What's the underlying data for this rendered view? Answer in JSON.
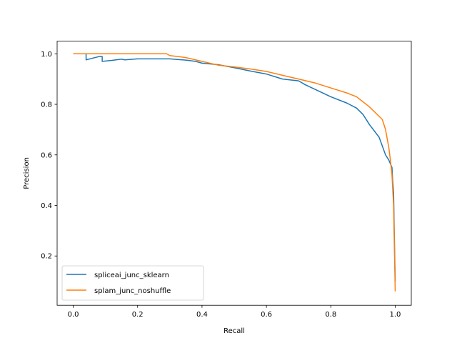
{
  "chart_data": {
    "type": "line",
    "title": "",
    "xlabel": "Recall",
    "ylabel": "Precision",
    "xlim": [
      -0.05,
      1.05
    ],
    "ylim": [
      0.005,
      1.05
    ],
    "xticks": [
      0.0,
      0.2,
      0.4,
      0.6,
      0.8,
      1.0
    ],
    "xtick_labels": [
      "0.0",
      "0.2",
      "0.4",
      "0.6",
      "0.8",
      "1.0"
    ],
    "yticks": [
      0.2,
      0.4,
      0.6,
      0.8,
      1.0
    ],
    "ytick_labels": [
      "0.2",
      "0.4",
      "0.6",
      "0.8",
      "1.0"
    ],
    "grid": false,
    "legend_position": "lower-left",
    "series": [
      {
        "name": "spliceai_junc_sklearn",
        "color": "#1f77b4",
        "x": [
          0.0,
          0.04,
          0.04,
          0.08,
          0.09,
          0.09,
          0.12,
          0.15,
          0.16,
          0.2,
          0.25,
          0.3,
          0.35,
          0.38,
          0.4,
          0.45,
          0.5,
          0.55,
          0.6,
          0.65,
          0.7,
          0.72,
          0.75,
          0.8,
          0.85,
          0.88,
          0.9,
          0.92,
          0.95,
          0.97,
          0.98,
          0.99,
          0.992,
          0.995,
          0.997,
          1.0
        ],
        "y": [
          1.0,
          1.0,
          0.976,
          0.989,
          0.989,
          0.97,
          0.974,
          0.979,
          0.976,
          0.98,
          0.98,
          0.98,
          0.975,
          0.97,
          0.963,
          0.957,
          0.945,
          0.932,
          0.92,
          0.9,
          0.893,
          0.878,
          0.86,
          0.83,
          0.805,
          0.785,
          0.76,
          0.72,
          0.67,
          0.6,
          0.58,
          0.55,
          0.5,
          0.45,
          0.3,
          0.1
        ]
      },
      {
        "name": "splam_junc_noshuffle",
        "color": "#ff7f0e",
        "x": [
          0.0,
          0.1,
          0.2,
          0.29,
          0.3,
          0.35,
          0.4,
          0.45,
          0.5,
          0.55,
          0.6,
          0.65,
          0.7,
          0.75,
          0.8,
          0.85,
          0.88,
          0.9,
          0.92,
          0.94,
          0.96,
          0.97,
          0.98,
          0.985,
          0.99,
          0.995,
          0.998,
          1.0
        ],
        "y": [
          1.0,
          1.0,
          1.0,
          1.0,
          0.993,
          0.985,
          0.97,
          0.955,
          0.948,
          0.94,
          0.93,
          0.915,
          0.9,
          0.885,
          0.865,
          0.845,
          0.83,
          0.81,
          0.79,
          0.765,
          0.74,
          0.7,
          0.63,
          0.58,
          0.52,
          0.4,
          0.2,
          0.06
        ]
      }
    ]
  }
}
